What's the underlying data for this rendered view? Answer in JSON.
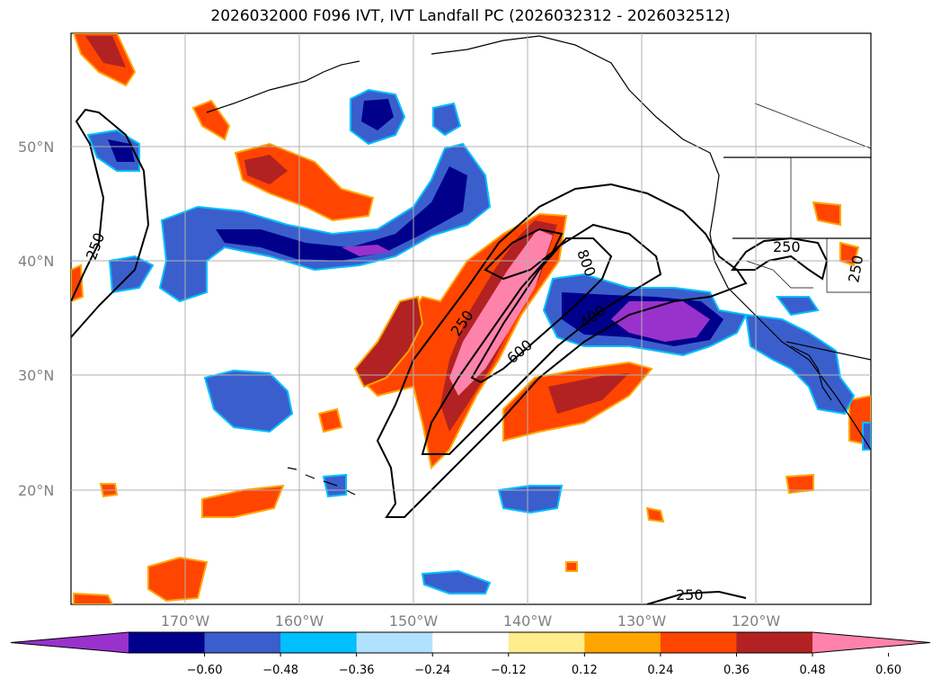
{
  "title": "2026032000 F096 IVT, IVT Landfall PC (2026032312 - 2026032512)",
  "map": {
    "lat_labels": [
      "50°N",
      "40°N",
      "30°N",
      "20°N"
    ],
    "lon_labels": [
      "170°W",
      "160°W",
      "150°W",
      "140°W",
      "130°W",
      "120°W"
    ],
    "lat_lines": [
      50,
      40,
      30,
      20
    ],
    "lon_lines": [
      -170,
      -160,
      -150,
      -140,
      -130,
      -120
    ],
    "extent": {
      "lon_min": -180,
      "lon_max": -110,
      "lat_min": 10,
      "lat_max": 60
    },
    "contour_labels": [
      "250",
      "250",
      "800",
      "400",
      "600",
      "250",
      "250",
      "250"
    ]
  },
  "colorbar": {
    "colors": [
      "#9932CC",
      "#00008B",
      "#3A5FCD",
      "#00BFFF",
      "#B0E2FF",
      "#FFFFFF",
      "#FFEC8B",
      "#FFA500",
      "#FF4500",
      "#B22222",
      "#FF82AB"
    ],
    "tick_labels": [
      "−0.60",
      "−0.48",
      "−0.36",
      "−0.24",
      "−0.12",
      "0.12",
      "0.24",
      "0.36",
      "0.48",
      "0.60"
    ]
  }
}
